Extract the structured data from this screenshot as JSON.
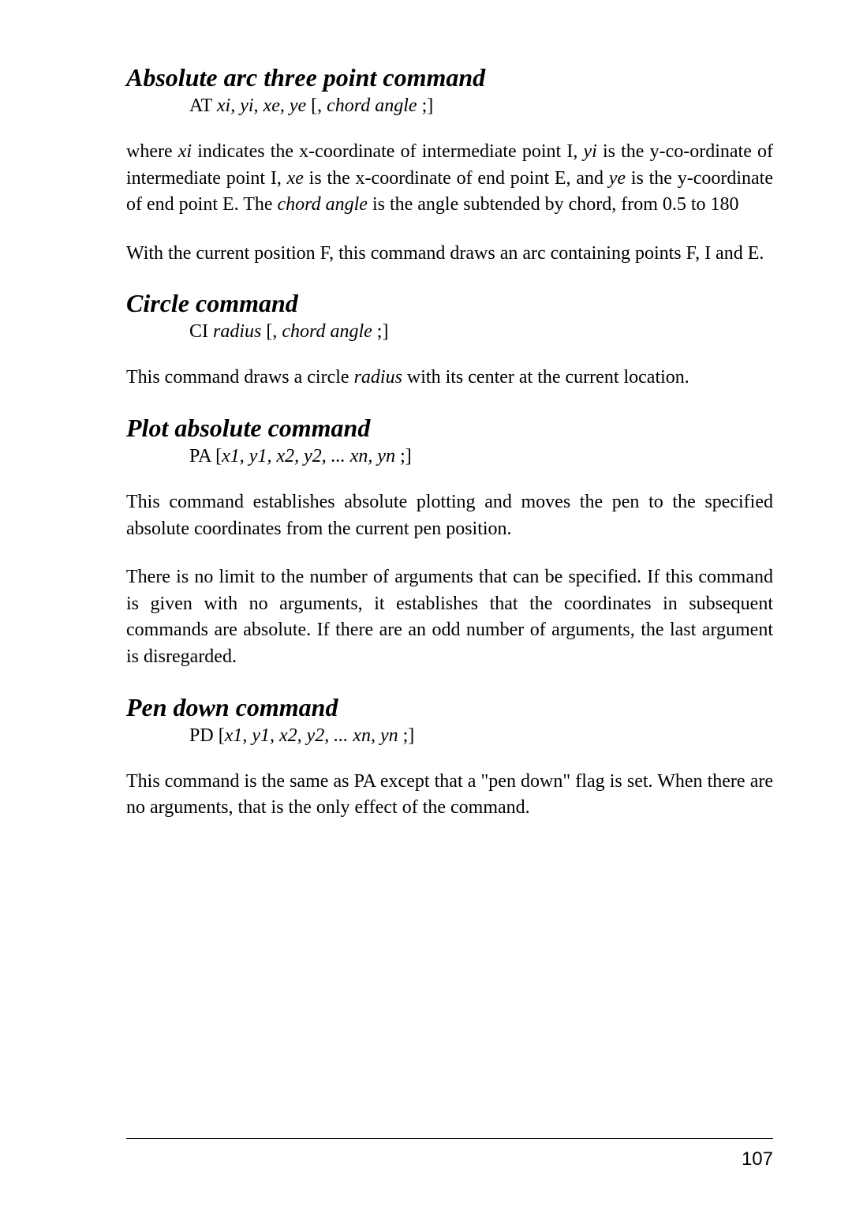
{
  "sections": {
    "at": {
      "title": "Absolute arc three point command",
      "syntax_cmd": "AT ",
      "syntax_ital": "xi, yi, xe, ye ",
      "syntax_rest1": "[, ",
      "syntax_ital2": "chord angle ",
      "syntax_rest2": ";]",
      "p1_a": "where ",
      "p1_xi": "xi",
      "p1_b": " indicates the x-coordinate of intermediate point I, ",
      "p1_yi": "yi",
      "p1_c": " is the y-co-ordinate of intermediate point I, ",
      "p1_xe": "xe",
      "p1_d": " is the x-coordinate of end point E, and ",
      "p1_ye": "ye",
      "p1_e": " is the y-coordinate of end point E. The ",
      "p1_ca": "chord angle",
      "p1_f": " is the angle subtended by chord, from 0.5 to 180",
      "p2": "With the current position F, this command draws an arc containing points F, I and E."
    },
    "ci": {
      "title": "Circle command",
      "syntax_cmd": "CI ",
      "syntax_ital": "radius ",
      "syntax_rest1": "[, ",
      "syntax_ital2": "chord angle ",
      "syntax_rest2": ";]",
      "p1_a": "This command draws a circle ",
      "p1_r": "radius",
      "p1_b": " with its center at the current location."
    },
    "pa": {
      "title": "Plot absolute command",
      "syntax_cmd": "PA ",
      "syntax_rest1": "[",
      "syntax_ital": "x1, y1, x2, y2, ... xn, yn ",
      "syntax_rest2": ";]",
      "p1": "This command establishes absolute plotting and moves the pen to the specified absolute coordinates from the current pen position.",
      "p2": "There is no limit to the number of arguments that can be specified. If this command is given with no arguments, it establishes that the coordinates in subsequent commands are absolute. If there are an odd number of arguments, the last argument is disregarded."
    },
    "pd": {
      "title": "Pen down command",
      "syntax_cmd": "PD ",
      "syntax_rest1": "[",
      "syntax_ital": "x1, y1, x2, y2, ... xn, yn ",
      "syntax_rest2": ";]",
      "p1": "This command is the same as PA except that a \"pen down\" flag is set. When there are no arguments, that is the only effect of the command."
    }
  },
  "page_number": "107"
}
